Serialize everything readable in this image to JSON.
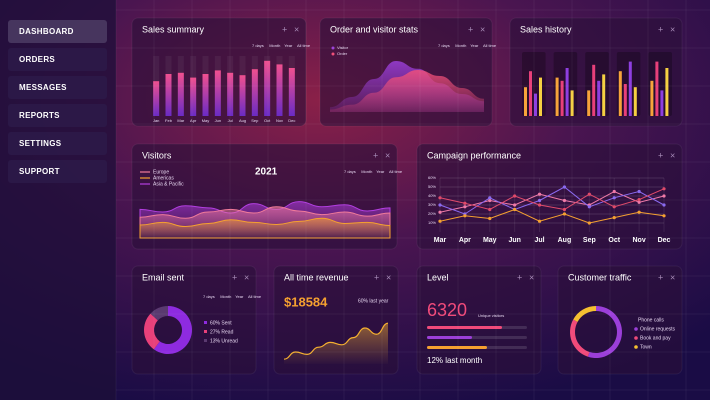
{
  "menu": [
    "DASHBOARD",
    "ORDERS",
    "MESSAGES",
    "REPORTS",
    "SETTINGS",
    "SUPPORT"
  ],
  "sales_summary": {
    "title": "Sales summary",
    "tabs": [
      "7 days",
      "Month",
      "Year",
      "All time"
    ],
    "categories": [
      "Jan",
      "Feb",
      "Mar",
      "Apr",
      "May",
      "Jun",
      "Jul",
      "Aug",
      "Sep",
      "Oct",
      "Nov",
      "Dec"
    ],
    "values": [
      580,
      700,
      720,
      640,
      700,
      760,
      720,
      680,
      780,
      920,
      860,
      800
    ],
    "colors": [
      "#f0508f",
      "#6a2bc4"
    ],
    "ylim": [
      0,
      1000
    ]
  },
  "order_visitor": {
    "title": "Order and visitor stats",
    "tabs": [
      "7 days",
      "Month",
      "Year",
      "All time"
    ],
    "series": [
      {
        "name": "Visitor",
        "color": "#9b3fd9",
        "values": [
          8,
          25,
          55,
          85,
          72,
          48,
          30,
          18
        ]
      },
      {
        "name": "Order",
        "color": "#f0507a",
        "values": [
          4,
          12,
          32,
          58,
          70,
          60,
          40,
          22
        ]
      }
    ],
    "ylim": [
      0,
      100
    ]
  },
  "sales_history": {
    "title": "Sales history",
    "series": [
      {
        "color": "#f7a43b",
        "values": [
          45,
          60,
          40,
          70,
          55
        ]
      },
      {
        "color": "#e8407a",
        "values": [
          70,
          55,
          80,
          50,
          85
        ]
      },
      {
        "color": "#8e3fe0",
        "values": [
          35,
          75,
          55,
          85,
          40
        ]
      },
      {
        "color": "#f5d042",
        "values": [
          60,
          40,
          65,
          45,
          75
        ]
      }
    ],
    "ylim": [
      0,
      100
    ]
  },
  "visitors": {
    "title": "Visitors",
    "year": "2021",
    "tabs": [
      "7 days",
      "Month",
      "Year",
      "All time"
    ],
    "series": [
      {
        "name": "Europe",
        "color": "#f07a9a",
        "values": [
          40,
          45,
          38,
          50,
          55,
          48,
          60,
          52,
          45,
          50,
          42,
          48
        ]
      },
      {
        "name": "Americas",
        "color": "#f5a030",
        "values": [
          25,
          30,
          22,
          28,
          35,
          30,
          26,
          32,
          38,
          28,
          30,
          24
        ]
      },
      {
        "name": "Asia & Pacific",
        "color": "#b23ee0",
        "values": [
          55,
          50,
          62,
          58,
          48,
          66,
          55,
          70,
          60,
          64,
          52,
          58
        ]
      }
    ],
    "ylim": [
      0,
      100
    ]
  },
  "campaign": {
    "title": "Campaign performance",
    "categories": [
      "Mar",
      "Apr",
      "May",
      "Jun",
      "Jul",
      "Aug",
      "Sep",
      "Oct",
      "Nov",
      "Dec"
    ],
    "series": [
      {
        "color": "#f07aa8",
        "values": [
          22,
          28,
          35,
          30,
          42,
          35,
          30,
          45,
          33,
          40
        ]
      },
      {
        "color": "#8a6af0",
        "values": [
          30,
          20,
          38,
          25,
          35,
          50,
          28,
          38,
          45,
          30
        ]
      },
      {
        "color": "#f5a030",
        "values": [
          12,
          18,
          15,
          25,
          12,
          20,
          10,
          16,
          22,
          18
        ]
      },
      {
        "color": "#e04a6a",
        "values": [
          38,
          32,
          25,
          40,
          30,
          25,
          42,
          28,
          36,
          48
        ]
      }
    ],
    "ylim": [
      0,
      60
    ],
    "yticks": [
      {
        "value": 10,
        "label": "10%"
      },
      {
        "value": 20,
        "label": "20%"
      },
      {
        "value": 30,
        "label": "30%"
      },
      {
        "value": 40,
        "label": "40%"
      },
      {
        "value": 50,
        "label": "50%"
      },
      {
        "value": 60,
        "label": "60%"
      }
    ]
  },
  "email": {
    "title": "Email sent",
    "tabs": [
      "7 days",
      "Month",
      "Year",
      "All time"
    ],
    "segments": [
      {
        "label": "60% Sent",
        "value": 60,
        "color": "#8e2be0"
      },
      {
        "label": "27% Read",
        "value": 27,
        "color": "#e8407a"
      },
      {
        "label": "13% Unread",
        "value": 13,
        "color": "#5a3a70"
      }
    ]
  },
  "revenue": {
    "title": "All time revenue",
    "amount": "$18584",
    "note": "60% last year",
    "values": [
      10,
      25,
      20,
      35,
      45,
      40,
      55,
      75,
      62,
      85
    ],
    "color": "#f5b030",
    "ylim": [
      0,
      100
    ]
  },
  "level": {
    "title": "Level",
    "value": "6320",
    "caption": "Unique visitors",
    "footer": "12% last month",
    "bars": [
      {
        "value": 75,
        "color": "#f04a7a"
      },
      {
        "value": 45,
        "color": "#9b3fd9"
      },
      {
        "value": 60,
        "color": "#f5a030"
      }
    ],
    "max": 100
  },
  "traffic": {
    "title": "Customer traffic",
    "heading": "Phone calls",
    "segments": [
      {
        "label": "Online requests",
        "value": 55,
        "color": "#9b3fd9"
      },
      {
        "label": "Book and pay",
        "value": 28,
        "color": "#f04a7a"
      },
      {
        "label": "Town",
        "value": 17,
        "color": "#f5c030"
      }
    ]
  }
}
